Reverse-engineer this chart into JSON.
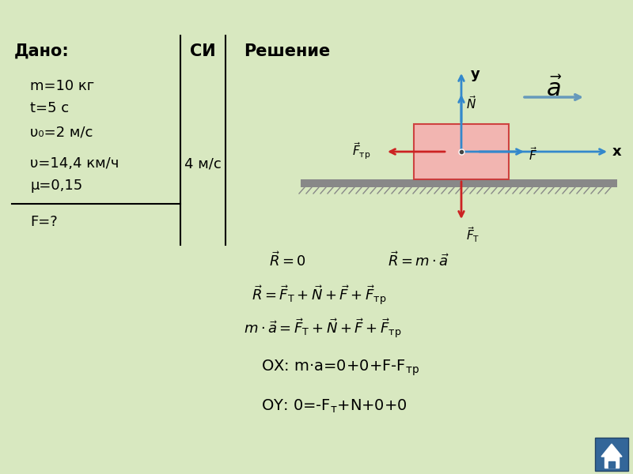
{
  "bg_color": "#d8e8c0",
  "title_dado": "Дано:",
  "title_si": "СИ",
  "title_reshenie": "Решение",
  "dado_lines": [
    "m=10 кг",
    "t=5 с",
    "υ₀=2 м/с",
    "υ=14,4 км/ч",
    "μ=0,15"
  ],
  "si_value": "4 м/с",
  "find_line": "F=?",
  "box_color": "#f5b0b0",
  "box_edge_color": "#cc3333",
  "axis_color_blue": "#3388cc",
  "axis_color_red": "#cc2222",
  "surface_color": "#999999",
  "btn_color": "#336699"
}
